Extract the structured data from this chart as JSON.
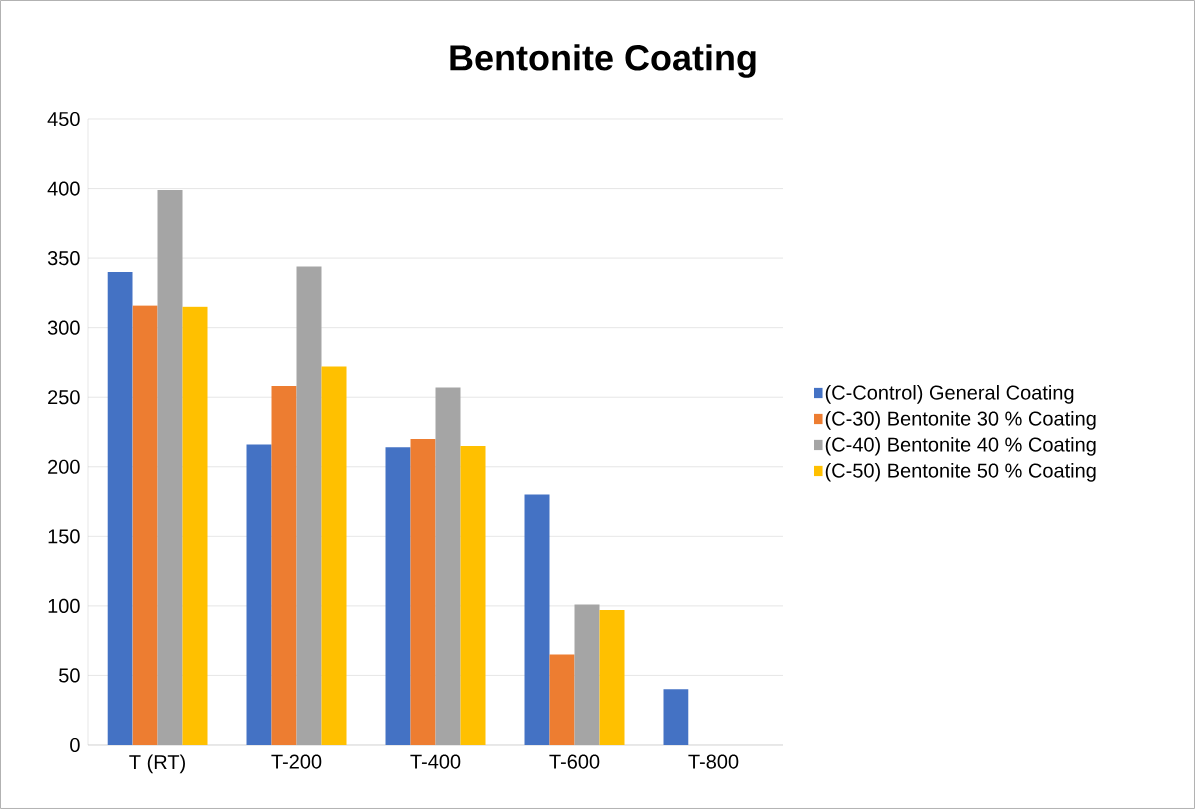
{
  "chart_data": {
    "type": "bar",
    "title": "Bentonite Coating",
    "categories": [
      "T (RT)",
      "T-200",
      "T-400",
      "T-600",
      "T-800"
    ],
    "series": [
      {
        "name": "(C-Control) General Coating",
        "color": "#4472c4",
        "values": [
          340,
          216,
          214,
          180,
          40
        ]
      },
      {
        "name": "(C-30) Bentonite 30 % Coating",
        "color": "#ed7d31",
        "values": [
          316,
          258,
          220,
          65,
          null
        ]
      },
      {
        "name": "(C-40) Bentonite 40 % Coating",
        "color": "#a5a5a5",
        "values": [
          399,
          344,
          257,
          101,
          null
        ]
      },
      {
        "name": "(C-50) Bentonite 50 % Coating",
        "color": "#ffc000",
        "values": [
          315,
          272,
          215,
          97,
          null
        ]
      }
    ],
    "ylim": [
      0,
      450
    ],
    "yticks": [
      0,
      50,
      100,
      150,
      200,
      250,
      300,
      350,
      400,
      450
    ],
    "grid": "y",
    "legend": "right"
  }
}
